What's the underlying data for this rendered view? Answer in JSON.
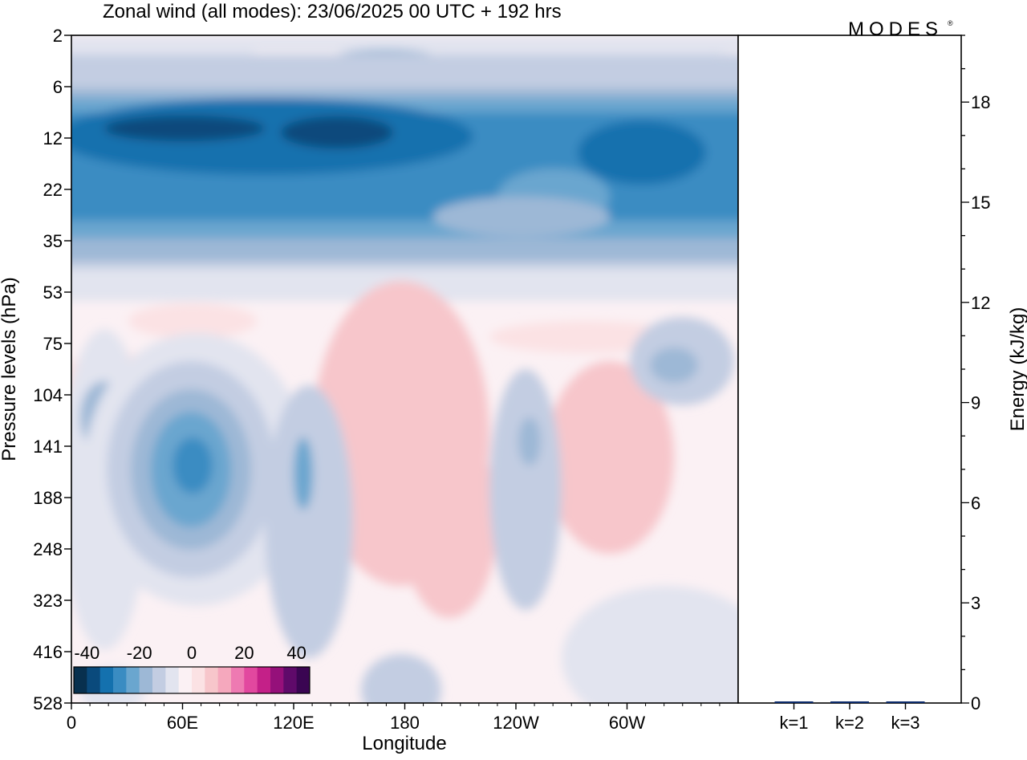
{
  "header": {
    "title": "Zonal wind (all modes):  23/06/2025  00 UTC  + 192 hrs",
    "logo_text": "MODES",
    "logo_mark": "®"
  },
  "chart_data": [
    {
      "type": "heatmap",
      "title": "Zonal wind (all modes):  23/06/2025  00 UTC  + 192 hrs",
      "xlabel": "Longitude",
      "ylabel": "Pressure levels (hPa)",
      "x_ticks": [
        "0",
        "60E",
        "120E",
        "180",
        "120W",
        "60W"
      ],
      "x_tick_degrees": [
        0,
        60,
        120,
        180,
        240,
        300
      ],
      "x_range_degrees": [
        0,
        360
      ],
      "y_ticks": [
        "2",
        "6",
        "12",
        "22",
        "35",
        "53",
        "75",
        "104",
        "141",
        "188",
        "248",
        "323",
        "416",
        "528"
      ],
      "y_axis": "pressure levels, top to bottom",
      "colorbar": {
        "tick_labels": [
          "-40",
          "-20",
          "0",
          "20",
          "40"
        ],
        "range": [
          -45,
          45
        ],
        "step": 5,
        "colors": [
          "#08304e",
          "#0a4a7c",
          "#1471ae",
          "#3a8cc2",
          "#6aa6cf",
          "#9db8d6",
          "#c3cde2",
          "#e2e4ef",
          "#fbf1f4",
          "#fbe2e4",
          "#f7c6cb",
          "#f5a8bd",
          "#ee7ab2",
          "#e2489f",
          "#c42088",
          "#95107a",
          "#5f0a6a",
          "#3a0552"
        ]
      },
      "features": [
        {
          "name": "easterly jet band",
          "levels": "8-30 hPa",
          "value": -30
        },
        {
          "name": "core maxima",
          "levels": "10-15 hPa",
          "lon": "30E-150E",
          "value": -40
        },
        {
          "name": "easterly maximum",
          "levels": "104-248 hPa",
          "lon": "50E-80E",
          "value": -35
        },
        {
          "name": "westerly region",
          "levels": "75-323 hPa",
          "lon": "160E-140W",
          "value": 10
        },
        {
          "name": "westerly region",
          "levels": "75-248 hPa",
          "lon": "90W-60W",
          "value": 10
        }
      ]
    },
    {
      "type": "bar",
      "categories": [
        "k=1",
        "k=2",
        "k=3"
      ],
      "values": [
        0.04,
        0.02,
        0.01
      ],
      "ylabel": "Energy (kJ/kg)",
      "y_ticks": [
        "0",
        "3",
        "6",
        "9",
        "12",
        "15",
        "18"
      ],
      "ylim": [
        0,
        20
      ],
      "y_minor_step": 1
    }
  ]
}
